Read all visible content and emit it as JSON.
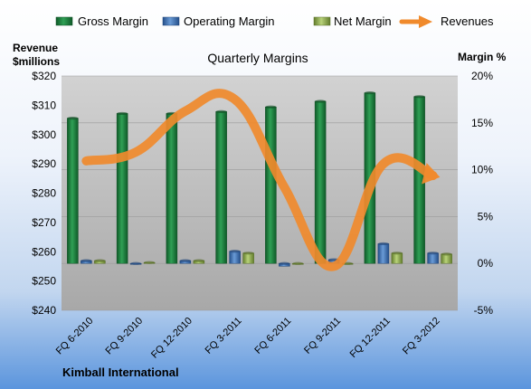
{
  "chart_data": {
    "type": "bar",
    "title": "Quarterly Margins",
    "company": "Kimball International",
    "left_axis_label": [
      "Revenue",
      "$millions"
    ],
    "right_axis_label": "Margin %",
    "categories": [
      "FQ 6-2010",
      "FQ 9-2010",
      "FQ 12-2010",
      "FQ 3-2011",
      "FQ 6-2011",
      "FQ 9-2011",
      "FQ 12-2011",
      "FQ 3-2012"
    ],
    "left_ticks": [
      "$240",
      "$250",
      "$260",
      "$270",
      "$280",
      "$290",
      "$300",
      "$310",
      "$320"
    ],
    "right_ticks": [
      "-5%",
      "0%",
      "5%",
      "10%",
      "15%",
      "20%"
    ],
    "ylim_margin": [
      -5,
      20
    ],
    "ylim_revenue": [
      240,
      320
    ],
    "series": [
      {
        "name": "Gross Margin",
        "type": "bar",
        "axis": "right",
        "color": "#1f7a3c",
        "values": [
          15.5,
          16.0,
          16.0,
          16.2,
          16.7,
          17.3,
          18.2,
          17.8
        ]
      },
      {
        "name": "Operating Margin",
        "type": "bar",
        "axis": "right",
        "color": "#3a6fb0",
        "values": [
          0.3,
          0.0,
          0.3,
          1.3,
          -0.3,
          0.4,
          2.1,
          1.1
        ]
      },
      {
        "name": "Net Margin",
        "type": "bar",
        "axis": "right",
        "color": "#8fb04a",
        "values": [
          0.3,
          0.1,
          0.3,
          1.1,
          0.0,
          0.0,
          1.1,
          1.0
        ]
      },
      {
        "name": "Revenues",
        "type": "line",
        "axis": "left",
        "color": "#f08a2c",
        "values": [
          291,
          294,
          308,
          312,
          282,
          255,
          290,
          286
        ]
      }
    ]
  }
}
